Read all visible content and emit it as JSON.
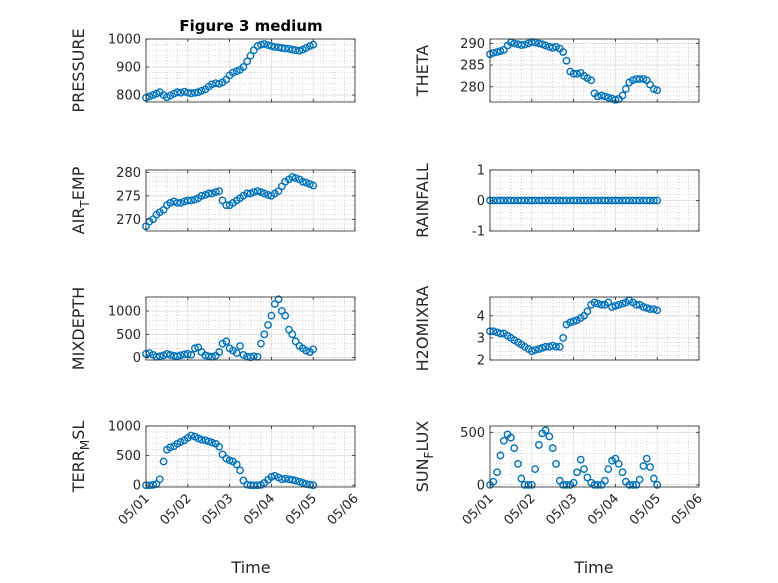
{
  "figure_title": "Figure 3 medium",
  "marker_color": "#0072BD",
  "chart_data": [
    {
      "type": "scatter",
      "ylabel": "PRESSURE",
      "ylim": [
        775,
        1000
      ],
      "yticks": [
        800,
        900,
        1000
      ],
      "ytick_labels": [
        "800",
        "900",
        "1000"
      ],
      "xlim": [
        "05/01",
        "05/06"
      ],
      "xticks": [
        "05/01",
        "05/02",
        "05/03",
        "05/04",
        "05/05",
        "05/06"
      ],
      "x": [
        1.0,
        1.08,
        1.17,
        1.25,
        1.33,
        1.42,
        1.5,
        1.58,
        1.67,
        1.75,
        1.83,
        1.92,
        2.0,
        2.08,
        2.17,
        2.25,
        2.33,
        2.42,
        2.5,
        2.58,
        2.67,
        2.75,
        2.83,
        2.92,
        3.0,
        3.08,
        3.17,
        3.25,
        3.33,
        3.42,
        3.5,
        3.58,
        3.67,
        3.75,
        3.83,
        3.92,
        4.0,
        4.08,
        4.17,
        4.25,
        4.33,
        4.42,
        4.5,
        4.58,
        4.67,
        4.75,
        4.83,
        4.92,
        5.0
      ],
      "y": [
        790,
        795,
        800,
        805,
        810,
        800,
        792,
        798,
        805,
        810,
        808,
        812,
        808,
        806,
        808,
        810,
        815,
        820,
        830,
        838,
        842,
        840,
        845,
        855,
        870,
        880,
        885,
        890,
        900,
        920,
        940,
        960,
        975,
        980,
        982,
        978,
        975,
        972,
        970,
        968,
        966,
        965,
        962,
        960,
        958,
        962,
        968,
        975,
        980
      ]
    },
    {
      "type": "scatter",
      "ylabel": "THETA",
      "ylim": [
        276.5,
        291
      ],
      "yticks": [
        280,
        285,
        290
      ],
      "ytick_labels": [
        "280",
        "285",
        "290"
      ],
      "xlim": [
        "05/01",
        "05/06"
      ],
      "xticks": [
        "05/01",
        "05/02",
        "05/03",
        "05/04",
        "05/05",
        "05/06"
      ],
      "x": [
        1.0,
        1.08,
        1.17,
        1.25,
        1.33,
        1.42,
        1.5,
        1.58,
        1.67,
        1.75,
        1.83,
        1.92,
        2.0,
        2.08,
        2.17,
        2.25,
        2.33,
        2.42,
        2.5,
        2.58,
        2.67,
        2.75,
        2.83,
        2.92,
        3.0,
        3.08,
        3.17,
        3.25,
        3.33,
        3.42,
        3.5,
        3.58,
        3.67,
        3.75,
        3.83,
        3.92,
        4.0,
        4.08,
        4.17,
        4.25,
        4.33,
        4.42,
        4.5,
        4.58,
        4.67,
        4.75,
        4.83,
        4.92,
        5.0
      ],
      "y": [
        287.5,
        287.8,
        288,
        288.2,
        288.5,
        289.5,
        290.2,
        290,
        289.8,
        289.6,
        289.7,
        290,
        290.3,
        290.2,
        290,
        289.8,
        289.5,
        289.2,
        289,
        289.2,
        288.8,
        288,
        286,
        283.5,
        283,
        283,
        283.2,
        282.5,
        282,
        281.5,
        278.5,
        277.8,
        278,
        277.8,
        277.5,
        277.3,
        277,
        277.2,
        278,
        279.5,
        281,
        281.5,
        281.8,
        281.8,
        281.8,
        281.5,
        280.5,
        279.5,
        279.2
      ]
    },
    {
      "type": "scatter",
      "ylabel": "AIR_TEMP",
      "ylabel_parts": [
        "AIR",
        "T",
        "EMP"
      ],
      "ylim": [
        267.5,
        280.5
      ],
      "yticks": [
        270,
        275,
        280
      ],
      "ytick_labels": [
        "270",
        "275",
        "280"
      ],
      "xlim": [
        "05/01",
        "05/06"
      ],
      "xticks": [
        "05/01",
        "05/02",
        "05/03",
        "05/04",
        "05/05",
        "05/06"
      ],
      "x": [
        1.0,
        1.08,
        1.17,
        1.25,
        1.33,
        1.42,
        1.5,
        1.58,
        1.67,
        1.75,
        1.83,
        1.92,
        2.0,
        2.08,
        2.17,
        2.25,
        2.33,
        2.42,
        2.5,
        2.58,
        2.67,
        2.75,
        2.83,
        2.92,
        3.0,
        3.08,
        3.17,
        3.25,
        3.33,
        3.42,
        3.5,
        3.58,
        3.67,
        3.75,
        3.83,
        3.92,
        4.0,
        4.08,
        4.17,
        4.25,
        4.33,
        4.42,
        4.5,
        4.58,
        4.67,
        4.75,
        4.83,
        4.92,
        5.0
      ],
      "y": [
        268.5,
        269.5,
        270,
        271,
        271.5,
        272,
        273,
        273.5,
        273.8,
        273.5,
        273.5,
        273.8,
        274,
        274,
        274.2,
        274.5,
        275,
        275.2,
        275.5,
        275.5,
        275.8,
        276,
        274,
        273,
        273,
        273.5,
        274,
        274.5,
        275,
        275.5,
        275.5,
        275.8,
        276,
        275.8,
        275.5,
        275.2,
        275,
        275.5,
        276,
        277,
        278,
        278.5,
        279,
        278.8,
        278.5,
        278,
        277.8,
        277.5,
        277.2
      ]
    },
    {
      "type": "scatter",
      "ylabel": "RAINFALL",
      "ylim": [
        -1,
        1
      ],
      "yticks": [
        -1,
        0,
        1
      ],
      "ytick_labels": [
        "-1",
        "0",
        "1"
      ],
      "xlim": [
        "05/01",
        "05/06"
      ],
      "xticks": [
        "05/01",
        "05/02",
        "05/03",
        "05/04",
        "05/05",
        "05/06"
      ],
      "x": [
        1.0,
        1.08,
        1.17,
        1.25,
        1.33,
        1.42,
        1.5,
        1.58,
        1.67,
        1.75,
        1.83,
        1.92,
        2.0,
        2.08,
        2.17,
        2.25,
        2.33,
        2.42,
        2.5,
        2.58,
        2.67,
        2.75,
        2.83,
        2.92,
        3.0,
        3.08,
        3.17,
        3.25,
        3.33,
        3.42,
        3.5,
        3.58,
        3.67,
        3.75,
        3.83,
        3.92,
        4.0,
        4.08,
        4.17,
        4.25,
        4.33,
        4.42,
        4.5,
        4.58,
        4.67,
        4.75,
        4.83,
        4.92,
        5.0
      ],
      "y": [
        0,
        0,
        0,
        0,
        0,
        0,
        0,
        0,
        0,
        0,
        0,
        0,
        0,
        0,
        0,
        0,
        0,
        0,
        0,
        0,
        0,
        0,
        0,
        0,
        0,
        0,
        0,
        0,
        0,
        0,
        0,
        0,
        0,
        0,
        0,
        0,
        0,
        0,
        0,
        0,
        0,
        0,
        0,
        0,
        0,
        0,
        0,
        0,
        0
      ]
    },
    {
      "type": "scatter",
      "ylabel": "MIXDEPTH",
      "ylim": [
        -50,
        1300
      ],
      "yticks": [
        0,
        500,
        1000
      ],
      "ytick_labels": [
        "0",
        "500",
        "1000"
      ],
      "xlim": [
        "05/01",
        "05/06"
      ],
      "xticks": [
        "05/01",
        "05/02",
        "05/03",
        "05/04",
        "05/05",
        "05/06"
      ],
      "x": [
        1.0,
        1.08,
        1.17,
        1.25,
        1.33,
        1.42,
        1.5,
        1.58,
        1.67,
        1.75,
        1.83,
        1.92,
        2.0,
        2.08,
        2.17,
        2.25,
        2.33,
        2.42,
        2.5,
        2.58,
        2.67,
        2.75,
        2.83,
        2.92,
        3.0,
        3.08,
        3.17,
        3.25,
        3.33,
        3.42,
        3.5,
        3.58,
        3.67,
        3.75,
        3.83,
        3.92,
        4.0,
        4.08,
        4.17,
        4.25,
        4.33,
        4.42,
        4.5,
        4.58,
        4.67,
        4.75,
        4.83,
        4.92,
        5.0
      ],
      "y": [
        80,
        100,
        60,
        20,
        30,
        50,
        80,
        60,
        40,
        30,
        50,
        70,
        80,
        60,
        200,
        220,
        120,
        50,
        30,
        20,
        40,
        120,
        300,
        350,
        200,
        150,
        100,
        250,
        60,
        20,
        10,
        30,
        20,
        300,
        500,
        700,
        900,
        1150,
        1250,
        1000,
        900,
        600,
        500,
        350,
        250,
        200,
        150,
        120,
        180
      ]
    },
    {
      "type": "scatter",
      "ylabel": "H2OMIXRA",
      "ylim": [
        2,
        4.85
      ],
      "yticks": [
        2,
        3,
        4
      ],
      "ytick_labels": [
        "2",
        "3",
        "4"
      ],
      "xlim": [
        "05/01",
        "05/06"
      ],
      "xticks": [
        "05/01",
        "05/02",
        "05/03",
        "05/04",
        "05/05",
        "05/06"
      ],
      "x": [
        1.0,
        1.08,
        1.17,
        1.25,
        1.33,
        1.42,
        1.5,
        1.58,
        1.67,
        1.75,
        1.83,
        1.92,
        2.0,
        2.08,
        2.17,
        2.25,
        2.33,
        2.42,
        2.5,
        2.58,
        2.67,
        2.75,
        2.83,
        2.92,
        3.0,
        3.08,
        3.17,
        3.25,
        3.33,
        3.42,
        3.5,
        3.58,
        3.67,
        3.75,
        3.83,
        3.92,
        4.0,
        4.08,
        4.17,
        4.25,
        4.33,
        4.42,
        4.5,
        4.58,
        4.67,
        4.75,
        4.83,
        4.92,
        5.0
      ],
      "y": [
        3.3,
        3.3,
        3.25,
        3.2,
        3.2,
        3.1,
        3.0,
        2.9,
        2.8,
        2.7,
        2.6,
        2.5,
        2.4,
        2.45,
        2.5,
        2.55,
        2.6,
        2.6,
        2.65,
        2.6,
        2.6,
        3.0,
        3.6,
        3.7,
        3.75,
        3.8,
        3.9,
        4.0,
        4.2,
        4.5,
        4.6,
        4.55,
        4.5,
        4.5,
        4.6,
        4.4,
        4.45,
        4.5,
        4.55,
        4.6,
        4.7,
        4.6,
        4.5,
        4.5,
        4.4,
        4.35,
        4.3,
        4.3,
        4.25
      ]
    },
    {
      "type": "scatter",
      "ylabel": "TERR_MSL",
      "ylabel_parts": [
        "TERR",
        "M",
        "SL"
      ],
      "ylim": [
        -30,
        1000
      ],
      "yticks": [
        0,
        500,
        1000
      ],
      "ytick_labels": [
        "0",
        "500",
        "1000"
      ],
      "xlim": [
        "05/01",
        "05/06"
      ],
      "xticks": [
        "05/01",
        "05/02",
        "05/03",
        "05/04",
        "05/05",
        "05/06"
      ],
      "x": [
        1.0,
        1.08,
        1.17,
        1.25,
        1.33,
        1.42,
        1.5,
        1.58,
        1.67,
        1.75,
        1.83,
        1.92,
        2.0,
        2.08,
        2.17,
        2.25,
        2.33,
        2.42,
        2.5,
        2.58,
        2.67,
        2.75,
        2.83,
        2.92,
        3.0,
        3.08,
        3.17,
        3.25,
        3.33,
        3.42,
        3.5,
        3.58,
        3.67,
        3.75,
        3.83,
        3.92,
        4.0,
        4.08,
        4.17,
        4.25,
        4.33,
        4.42,
        4.5,
        4.58,
        4.67,
        4.75,
        4.83,
        4.92,
        5.0
      ],
      "y": [
        0,
        0,
        5,
        20,
        100,
        400,
        600,
        640,
        660,
        700,
        730,
        760,
        800,
        840,
        820,
        790,
        770,
        760,
        740,
        720,
        700,
        650,
        520,
        450,
        420,
        400,
        350,
        250,
        80,
        10,
        0,
        0,
        0,
        5,
        40,
        90,
        140,
        160,
        130,
        100,
        110,
        100,
        90,
        80,
        60,
        40,
        20,
        10,
        0
      ]
    },
    {
      "type": "scatter",
      "ylabel": "SUN_FLUX",
      "ylabel_parts": [
        "SUN",
        "F",
        "LUX"
      ],
      "ylim": [
        -20,
        560
      ],
      "yticks": [
        0,
        500
      ],
      "ytick_labels": [
        "0",
        "500"
      ],
      "xlim": [
        "05/01",
        "05/06"
      ],
      "xticks": [
        "05/01",
        "05/02",
        "05/03",
        "05/04",
        "05/05",
        "05/06"
      ],
      "x": [
        1.0,
        1.08,
        1.17,
        1.25,
        1.33,
        1.42,
        1.5,
        1.58,
        1.67,
        1.75,
        1.83,
        1.92,
        2.0,
        2.08,
        2.17,
        2.25,
        2.33,
        2.42,
        2.5,
        2.58,
        2.67,
        2.75,
        2.83,
        2.92,
        3.0,
        3.08,
        3.17,
        3.25,
        3.33,
        3.42,
        3.5,
        3.58,
        3.67,
        3.75,
        3.83,
        3.92,
        4.0,
        4.08,
        4.17,
        4.25,
        4.33,
        4.42,
        4.5,
        4.58,
        4.67,
        4.75,
        4.83,
        4.92,
        5.0
      ],
      "y": [
        0,
        30,
        120,
        280,
        420,
        480,
        450,
        350,
        200,
        60,
        0,
        0,
        0,
        150,
        380,
        490,
        520,
        460,
        350,
        200,
        40,
        0,
        0,
        0,
        20,
        120,
        240,
        150,
        70,
        20,
        0,
        0,
        0,
        40,
        150,
        230,
        250,
        200,
        120,
        30,
        0,
        0,
        0,
        50,
        180,
        250,
        170,
        60,
        0
      ]
    }
  ],
  "xlabels": [
    "Time",
    "Time"
  ]
}
